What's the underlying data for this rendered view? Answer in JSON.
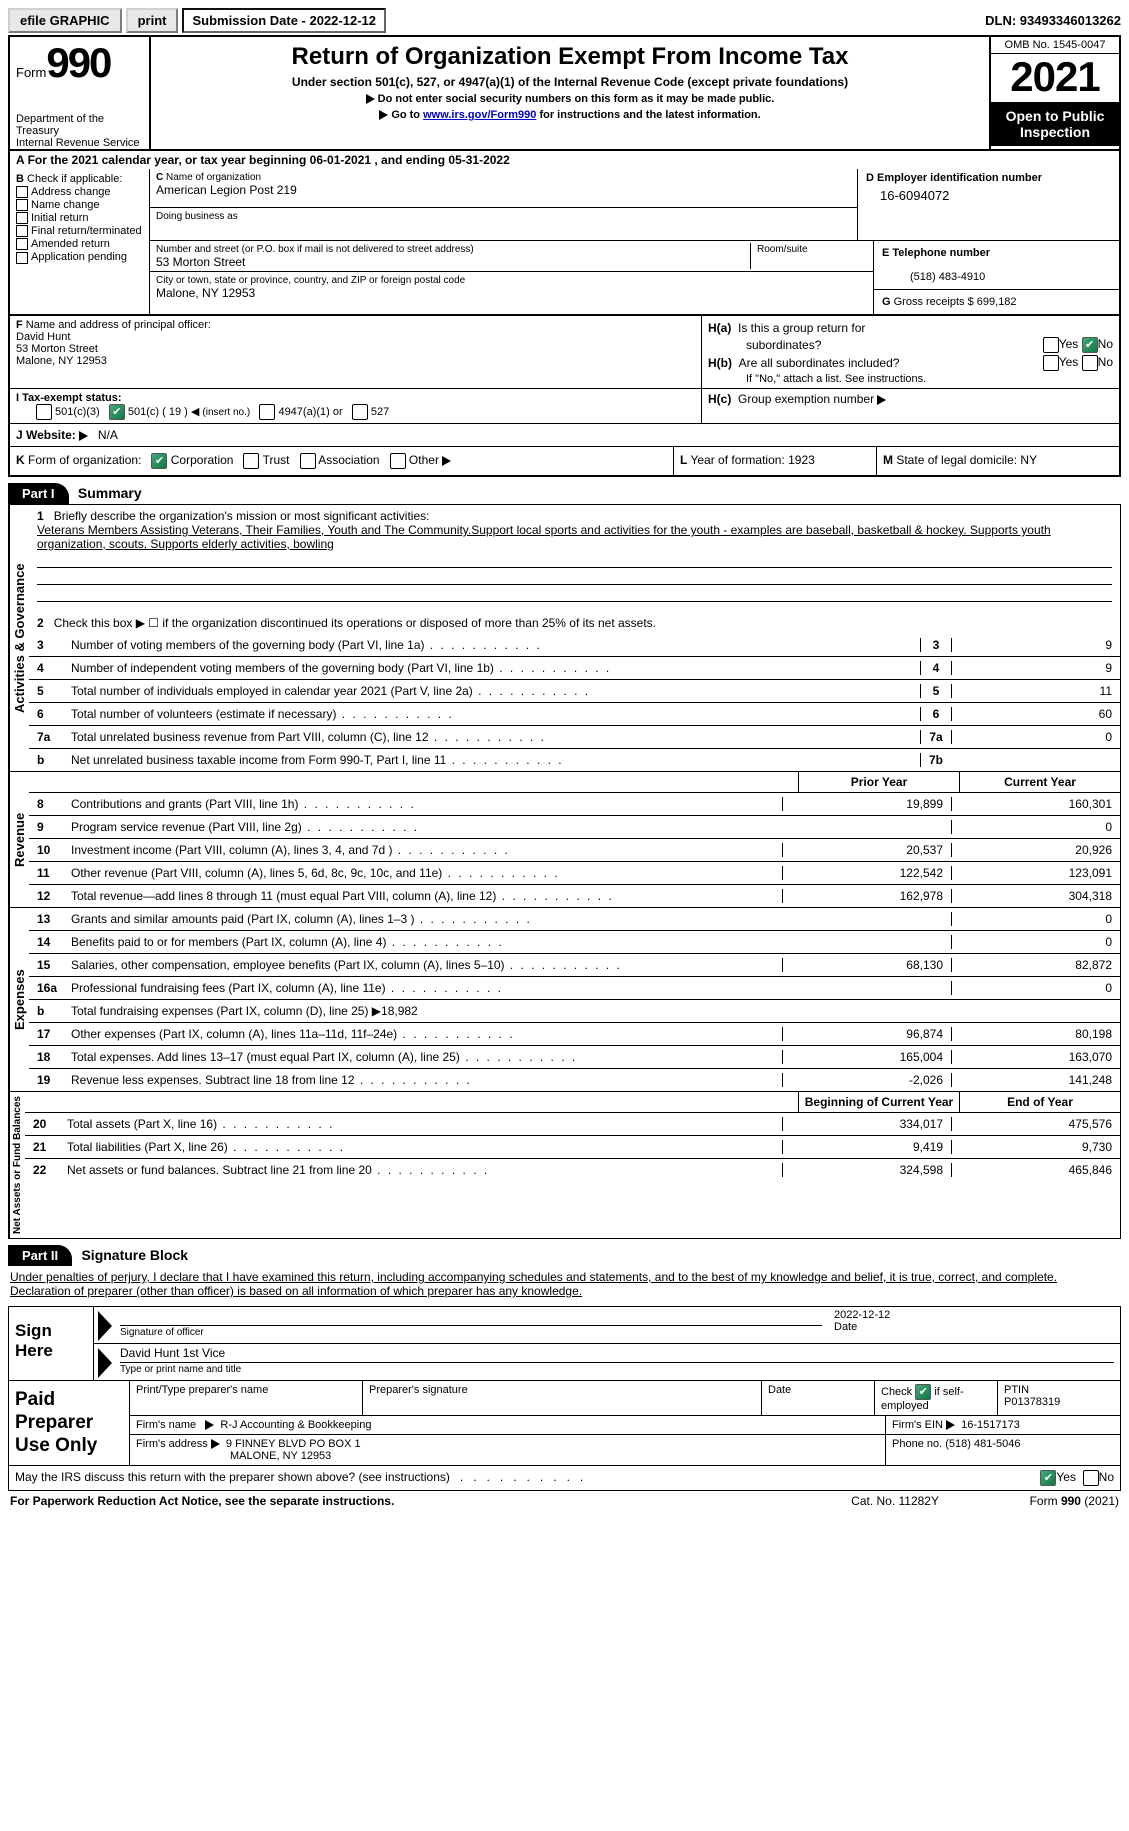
{
  "topbar": {
    "efile": "efile GRAPHIC",
    "print": "print",
    "sub_label": "Submission Date - 2022-12-12",
    "dln": "DLN: 93493346013262"
  },
  "header": {
    "form_word": "Form",
    "form_num": "990",
    "title": "Return of Organization Exempt From Income Tax",
    "subtitle": "Under section 501(c), 527, or 4947(a)(1) of the Internal Revenue Code (except private foundations)",
    "line1": "Do not enter social security numbers on this form as it may be made public.",
    "line2_pre": "Go to ",
    "line2_link": "www.irs.gov/Form990",
    "line2_post": " for instructions and the latest information.",
    "dept": "Department of the Treasury\nInternal Revenue Service",
    "omb": "OMB No. 1545-0047",
    "year": "2021",
    "inspection": "Open to Public Inspection"
  },
  "A": {
    "text": "For the 2021 calendar year, or tax year beginning 06-01-2021   , and ending 05-31-2022"
  },
  "B": {
    "label": "Check if applicable:",
    "opts": [
      "Address change",
      "Name change",
      "Initial return",
      "Final return/terminated",
      "Amended return",
      "Application pending"
    ]
  },
  "C": {
    "name_lbl": "Name of organization",
    "name": "American Legion Post 219",
    "dba_lbl": "Doing business as",
    "dba": "",
    "addr_lbl": "Number and street (or P.O. box if mail is not delivered to street address)",
    "room_lbl": "Room/suite",
    "addr": "53 Morton Street",
    "city_lbl": "City or town, state or province, country, and ZIP or foreign postal code",
    "city": "Malone, NY   12953"
  },
  "D": {
    "lbl": "Employer identification number",
    "val": "16-6094072"
  },
  "E": {
    "lbl": "Telephone number",
    "val": "(518) 483-4910"
  },
  "G": {
    "lbl": "Gross receipts $",
    "val": "699,182"
  },
  "F": {
    "lbl": "Name and address of principal officer:",
    "name": "David Hunt",
    "addr1": "53 Morton Street",
    "addr2": "Malone, NY   12953"
  },
  "H": {
    "a_lbl": "Is this a group return for",
    "a_lbl2": "subordinates?",
    "b_lbl": "Are all subordinates included?",
    "b_note": "If \"No,\" attach a list. See instructions.",
    "c_lbl": "Group exemption number"
  },
  "I": {
    "lbl": "Tax-exempt status:",
    "insert": "( 19 )",
    "insert_note": "(insert no.)"
  },
  "J": {
    "lbl": "Website:",
    "val": "N/A"
  },
  "K": {
    "lbl": "Form of organization:",
    "corp": "Corporation",
    "trust": "Trust",
    "assoc": "Association",
    "other": "Other"
  },
  "L": {
    "lbl": "Year of formation:",
    "val": "1923"
  },
  "M": {
    "lbl": "State of legal domicile:",
    "val": "NY"
  },
  "part1": {
    "hdr": "Part I",
    "title": "Summary"
  },
  "summary": {
    "line1_lbl": "Briefly describe the organization's mission or most significant activities:",
    "mission": "Veterans Members Assisting Veterans, Their Families, Youth and The Community.Support local sports and activities for the youth - examples are baseball, basketball & hockey. Supports youth organization, scouts. Supports elderly activities, bowling",
    "line2": "Check this box ▶ ☐  if the organization discontinued its operations or disposed of more than 25% of its net assets.",
    "lines": [
      {
        "n": "3",
        "d": "Number of voting members of the governing body (Part VI, line 1a)",
        "box": "3",
        "v": "9"
      },
      {
        "n": "4",
        "d": "Number of independent voting members of the governing body (Part VI, line 1b)",
        "box": "4",
        "v": "9"
      },
      {
        "n": "5",
        "d": "Total number of individuals employed in calendar year 2021 (Part V, line 2a)",
        "box": "5",
        "v": "11"
      },
      {
        "n": "6",
        "d": "Total number of volunteers (estimate if necessary)",
        "box": "6",
        "v": "60"
      },
      {
        "n": "7a",
        "d": "Total unrelated business revenue from Part VIII, column (C), line 12",
        "box": "7a",
        "v": "0"
      },
      {
        "n": "b",
        "d": "Net unrelated business taxable income from Form 990-T, Part I, line 11",
        "box": "7b",
        "v": ""
      }
    ],
    "tabs": {
      "activities": "Activities & Governance",
      "revenue": "Revenue",
      "expenses": "Expenses",
      "net": "Net Assets or Fund Balances"
    },
    "col_prior": "Prior Year",
    "col_current": "Current Year",
    "rev": [
      {
        "n": "8",
        "d": "Contributions and grants (Part VIII, line 1h)",
        "p": "19,899",
        "c": "160,301"
      },
      {
        "n": "9",
        "d": "Program service revenue (Part VIII, line 2g)",
        "p": "",
        "c": "0"
      },
      {
        "n": "10",
        "d": "Investment income (Part VIII, column (A), lines 3, 4, and 7d )",
        "p": "20,537",
        "c": "20,926"
      },
      {
        "n": "11",
        "d": "Other revenue (Part VIII, column (A), lines 5, 6d, 8c, 9c, 10c, and 11e)",
        "p": "122,542",
        "c": "123,091"
      },
      {
        "n": "12",
        "d": "Total revenue—add lines 8 through 11 (must equal Part VIII, column (A), line 12)",
        "p": "162,978",
        "c": "304,318"
      }
    ],
    "exp": [
      {
        "n": "13",
        "d": "Grants and similar amounts paid (Part IX, column (A), lines 1–3 )",
        "p": "",
        "c": "0"
      },
      {
        "n": "14",
        "d": "Benefits paid to or for members (Part IX, column (A), line 4)",
        "p": "",
        "c": "0"
      },
      {
        "n": "15",
        "d": "Salaries, other compensation, employee benefits (Part IX, column (A), lines 5–10)",
        "p": "68,130",
        "c": "82,872"
      },
      {
        "n": "16a",
        "d": "Professional fundraising fees (Part IX, column (A), line 11e)",
        "p": "",
        "c": "0"
      },
      {
        "n": "b",
        "d": "Total fundraising expenses (Part IX, column (D), line 25) ▶18,982",
        "p": "SHADE",
        "c": "SHADE"
      },
      {
        "n": "17",
        "d": "Other expenses (Part IX, column (A), lines 11a–11d, 11f–24e)",
        "p": "96,874",
        "c": "80,198"
      },
      {
        "n": "18",
        "d": "Total expenses. Add lines 13–17 (must equal Part IX, column (A), line 25)",
        "p": "165,004",
        "c": "163,070"
      },
      {
        "n": "19",
        "d": "Revenue less expenses. Subtract line 18 from line 12",
        "p": "-2,026",
        "c": "141,248"
      }
    ],
    "col_begin": "Beginning of Current Year",
    "col_end": "End of Year",
    "net": [
      {
        "n": "20",
        "d": "Total assets (Part X, line 16)",
        "p": "334,017",
        "c": "475,576"
      },
      {
        "n": "21",
        "d": "Total liabilities (Part X, line 26)",
        "p": "9,419",
        "c": "9,730"
      },
      {
        "n": "22",
        "d": "Net assets or fund balances. Subtract line 21 from line 20",
        "p": "324,598",
        "c": "465,846"
      }
    ]
  },
  "part2": {
    "hdr": "Part II",
    "title": "Signature Block"
  },
  "sig": {
    "penalties": "Under penalties of perjury, I declare that I have examined this return, including accompanying schedules and statements, and to the best of my knowledge and belief, it is true, correct, and complete. Declaration of preparer (other than officer) is based on all information of which preparer has any knowledge.",
    "sign_here": "Sign Here",
    "sig_officer": "Signature of officer",
    "date_lbl": "Date",
    "date": "2022-12-12",
    "typed_name": "David Hunt  1st Vice",
    "typed_lbl": "Type or print name and title"
  },
  "prep": {
    "label": "Paid Preparer Use Only",
    "h1": "Print/Type preparer's name",
    "h2": "Preparer's signature",
    "h3": "Date",
    "h4_chk": "Check",
    "h4_if": "if self-employed",
    "h5": "PTIN",
    "ptin": "P01378319",
    "firm_lbl": "Firm's name",
    "firm": "R-J Accounting & Bookkeeping",
    "ein_lbl": "Firm's EIN",
    "ein": "16-1517173",
    "addr_lbl": "Firm's address",
    "addr1": "9 FINNEY BLVD PO BOX 1",
    "addr2": "MALONE, NY   12953",
    "phone_lbl": "Phone no.",
    "phone": "(518) 481-5046"
  },
  "discuss": "May the IRS discuss this return with the preparer shown above? (see instructions)",
  "footer": {
    "l": "For Paperwork Reduction Act Notice, see the separate instructions.",
    "m": "Cat. No. 11282Y",
    "r": "Form 990 (2021)"
  }
}
